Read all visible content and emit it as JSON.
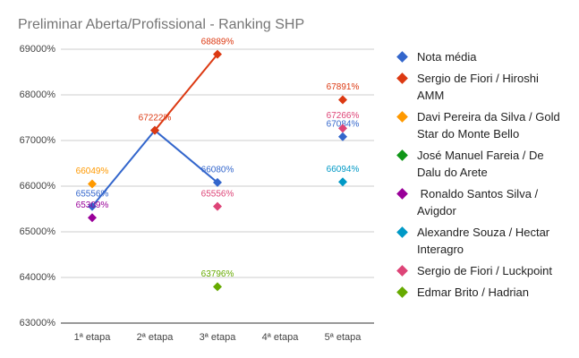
{
  "chart_data": {
    "type": "line",
    "title": "Preliminar Aberta/Profissional - Ranking SHP",
    "categories": [
      "1ª etapa",
      "2ª etapa",
      "3ª etapa",
      "4ª etapa",
      "5ª etapa"
    ],
    "ylim": [
      63000,
      69000
    ],
    "yticks": [
      {
        "value": 63000,
        "label": "63000%"
      },
      {
        "value": 64000,
        "label": "64000%"
      },
      {
        "value": 65000,
        "label": "65000%"
      },
      {
        "value": 66000,
        "label": "66000%"
      },
      {
        "value": 67000,
        "label": "67000%"
      },
      {
        "value": 68000,
        "label": "68000%"
      },
      {
        "value": 69000,
        "label": "69000%"
      }
    ],
    "grid": true,
    "legend": "right",
    "series": [
      {
        "name": "Nota média",
        "color": "#3366cc",
        "values": [
          65556,
          67222,
          66080,
          null,
          67084
        ],
        "value_labels": [
          "65556%",
          null,
          "66080%",
          null,
          "67084%"
        ]
      },
      {
        "name": "Sergio de Fiori / Hiroshi AMM",
        "color": "#dc3912",
        "values": [
          null,
          67222,
          68889,
          null,
          67891
        ],
        "value_labels": [
          null,
          "67222%",
          "68889%",
          null,
          "67891%"
        ]
      },
      {
        "name": "Davi Pereira da Silva / Gold Star do Monte Bello",
        "color": "#ff9900",
        "values": [
          66049,
          null,
          null,
          null,
          null
        ],
        "value_labels": [
          "66049%",
          null,
          null,
          null,
          null
        ]
      },
      {
        "name": "José Manuel Fareia / De Dalu do Arete",
        "color": "#109618",
        "values": [
          null,
          null,
          null,
          null,
          null
        ]
      },
      {
        "name": " Ronaldo Santos Silva / Avigdor",
        "color": "#990099",
        "values": [
          65309,
          null,
          null,
          null,
          null
        ],
        "value_labels": [
          "65309%",
          null,
          null,
          null,
          null
        ]
      },
      {
        "name": "Alexandre Souza / Hectar Interagro",
        "color": "#0099c6",
        "values": [
          null,
          null,
          null,
          null,
          66094
        ],
        "value_labels": [
          null,
          null,
          null,
          null,
          "66094%"
        ]
      },
      {
        "name": "Sergio de Fiori / Luckpoint",
        "color": "#dd4477",
        "values": [
          null,
          null,
          65556,
          null,
          67266
        ],
        "value_labels": [
          null,
          null,
          "65556%",
          null,
          "67266%"
        ]
      },
      {
        "name": "Edmar Brito / Hadrian",
        "color": "#66aa00",
        "values": [
          null,
          null,
          63796,
          null,
          null
        ],
        "value_labels": [
          null,
          null,
          "63796%",
          null,
          null
        ]
      }
    ]
  }
}
